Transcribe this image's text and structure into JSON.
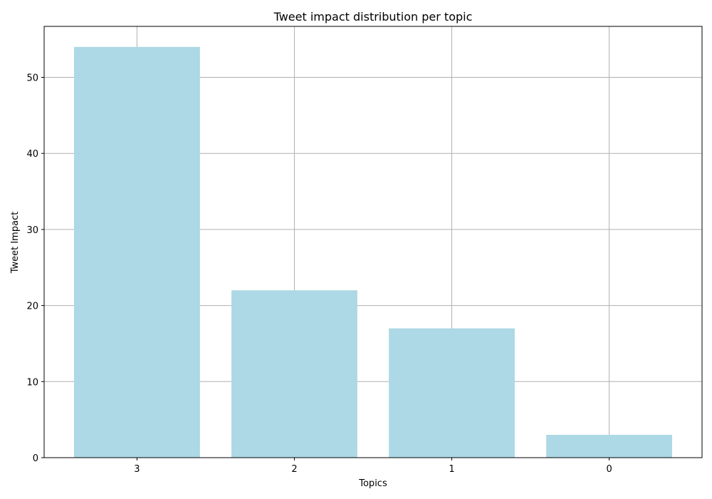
{
  "chart_data": {
    "type": "bar",
    "title": "Tweet impact distribution per topic",
    "xlabel": "Topics",
    "ylabel": "Tweet Impact",
    "categories": [
      "3",
      "2",
      "1",
      "0"
    ],
    "values": [
      54,
      22,
      17,
      3
    ],
    "ylim": [
      0,
      56.7
    ],
    "yticks": [
      0,
      10,
      20,
      30,
      40,
      50
    ],
    "grid": true,
    "bar_color": "#add8e6",
    "grid_color": "#b0b0b0"
  }
}
